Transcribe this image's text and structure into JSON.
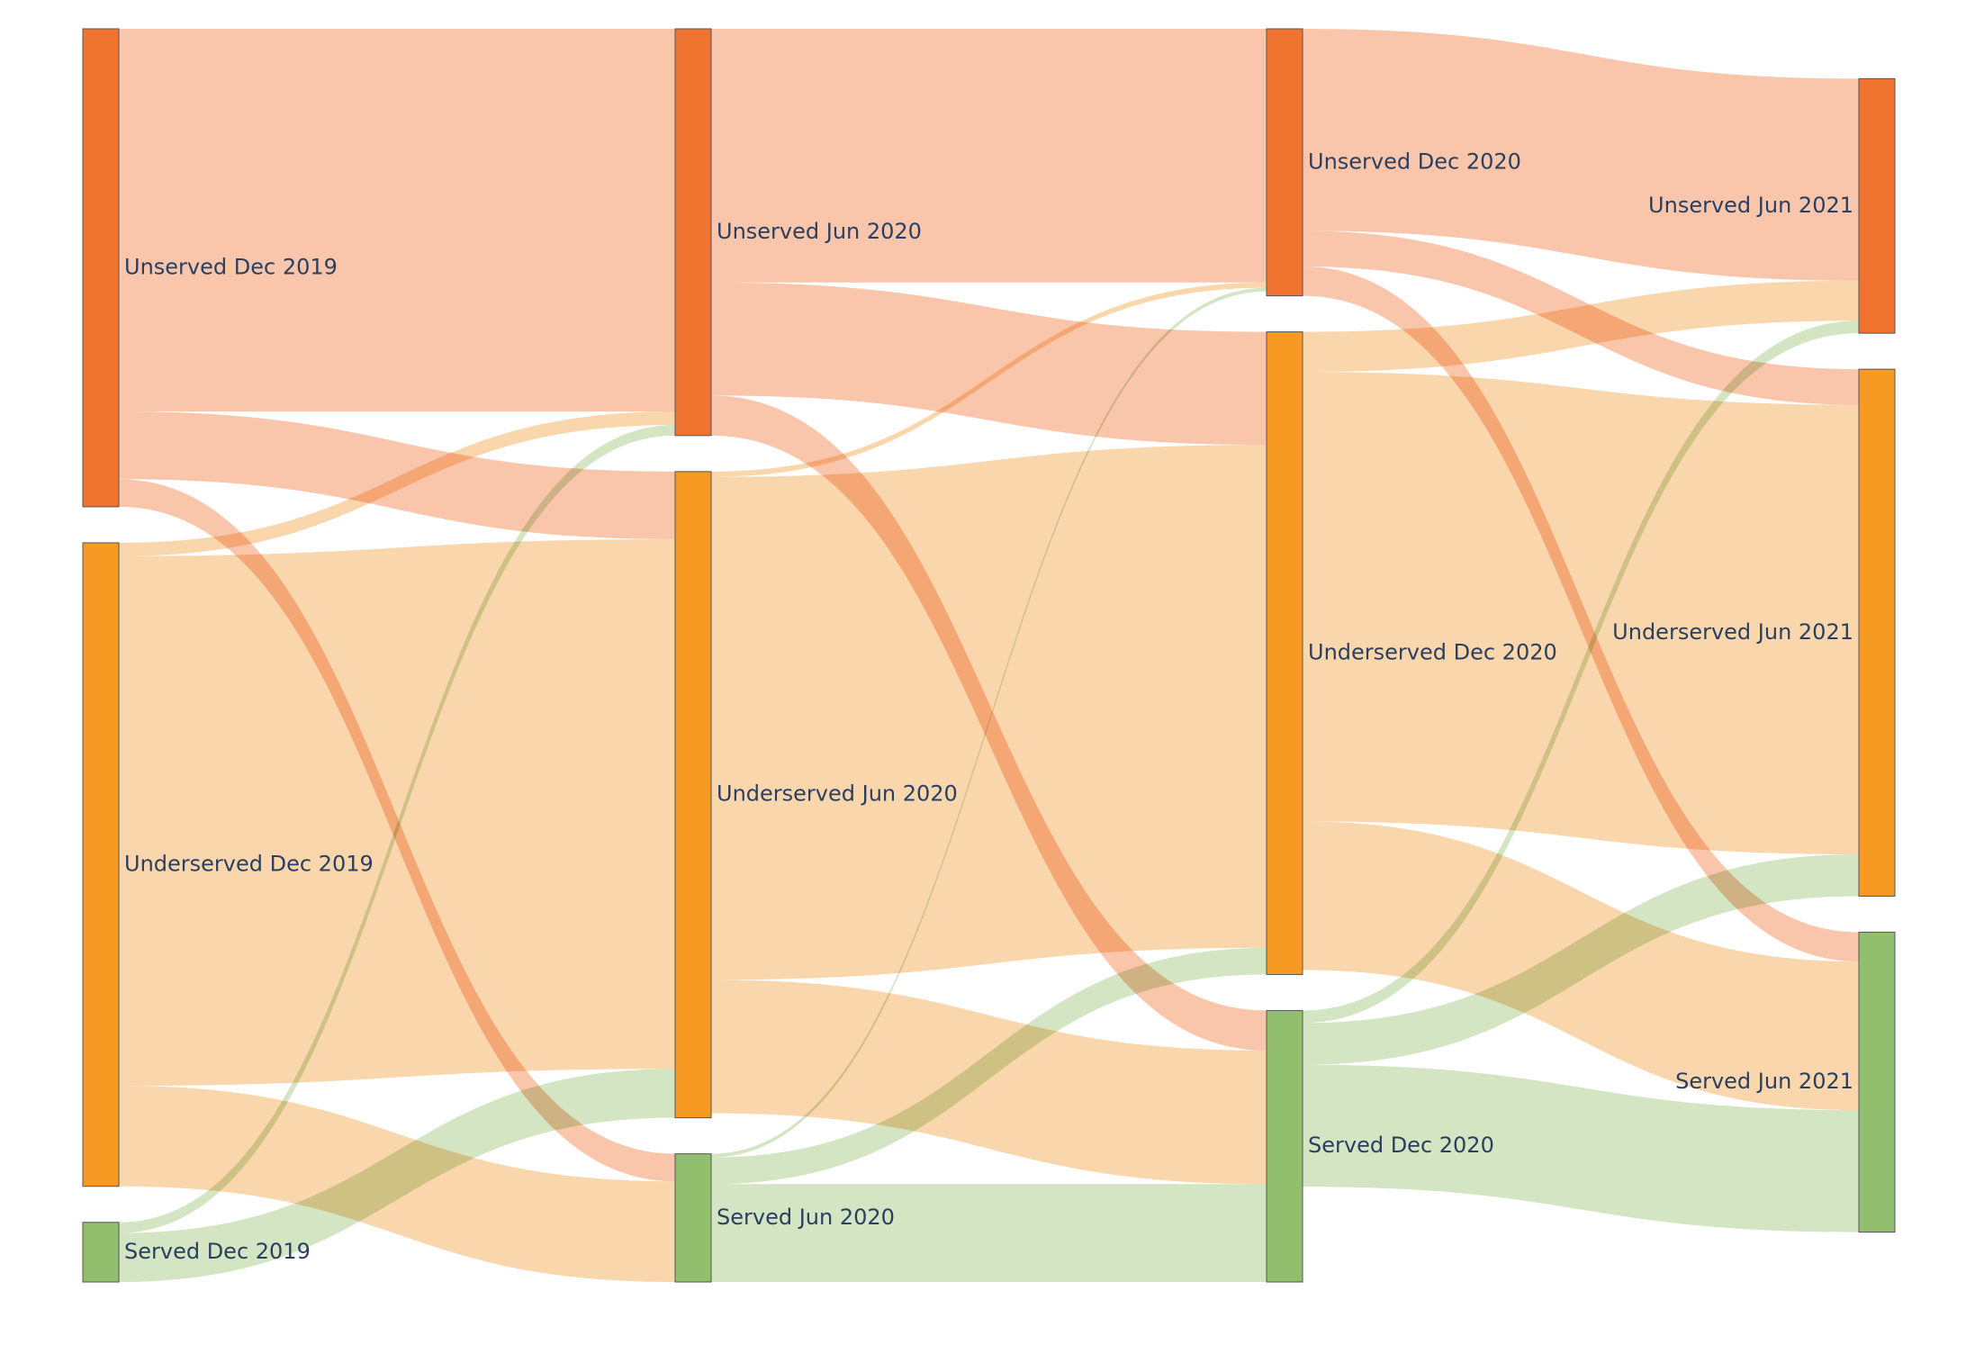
{
  "colors": {
    "unserved": "#f07330",
    "underserved": "#f79a24",
    "served": "#92bf6e",
    "unserved_link": "rgba(242,128,72,0.45)",
    "underserved_link": "rgba(245,165,70,0.45)",
    "served_link": "rgba(146,190,106,0.40)",
    "label": "#2a3f5f"
  },
  "chart_data": {
    "type": "sankey",
    "title": "",
    "columns": [
      "Dec 2019",
      "Jun 2020",
      "Dec 2020",
      "Jun 2021"
    ],
    "nodes": [
      {
        "id": "unserved_dec2019",
        "label": "Unserved Dec 2019",
        "category": "unserved",
        "column": 0
      },
      {
        "id": "underserved_dec2019",
        "label": "Underserved Dec 2019",
        "category": "underserved",
        "column": 0
      },
      {
        "id": "served_dec2019",
        "label": "Served Dec 2019",
        "category": "served",
        "column": 0
      },
      {
        "id": "unserved_jun2020",
        "label": "Unserved Jun 2020",
        "category": "unserved",
        "column": 1
      },
      {
        "id": "underserved_jun2020",
        "label": "Underserved Jun 2020",
        "category": "underserved",
        "column": 1
      },
      {
        "id": "served_jun2020",
        "label": "Served Jun 2020",
        "category": "served",
        "column": 1
      },
      {
        "id": "unserved_dec2020",
        "label": "Unserved Dec 2020",
        "category": "unserved",
        "column": 2
      },
      {
        "id": "underserved_dec2020",
        "label": "Underserved Dec 2020",
        "category": "underserved",
        "column": 2
      },
      {
        "id": "served_dec2020",
        "label": "Served Dec 2020",
        "category": "served",
        "column": 2
      },
      {
        "id": "unserved_jun2021",
        "label": "Unserved Jun 2021",
        "category": "unserved",
        "column": 3
      },
      {
        "id": "underserved_jun2021",
        "label": "Underserved Jun 2021",
        "category": "underserved",
        "column": 3
      },
      {
        "id": "served_jun2021",
        "label": "Served Jun 2021",
        "category": "served",
        "column": 3
      }
    ],
    "links": [
      {
        "source": "unserved_dec2019",
        "target": "unserved_jun2020",
        "value": 430
      },
      {
        "source": "unserved_dec2019",
        "target": "underserved_jun2020",
        "value": 76
      },
      {
        "source": "unserved_dec2019",
        "target": "served_jun2020",
        "value": 31
      },
      {
        "source": "underserved_dec2019",
        "target": "unserved_jun2020",
        "value": 15
      },
      {
        "source": "underserved_dec2019",
        "target": "underserved_jun2020",
        "value": 595
      },
      {
        "source": "underserved_dec2019",
        "target": "served_jun2020",
        "value": 113
      },
      {
        "source": "served_dec2019",
        "target": "unserved_jun2020",
        "value": 12
      },
      {
        "source": "served_dec2019",
        "target": "underserved_jun2020",
        "value": 55
      },
      {
        "source": "unserved_jun2020",
        "target": "unserved_dec2020",
        "value": 285
      },
      {
        "source": "unserved_jun2020",
        "target": "underserved_dec2020",
        "value": 127
      },
      {
        "source": "unserved_jun2020",
        "target": "served_dec2020",
        "value": 45
      },
      {
        "source": "underserved_jun2020",
        "target": "unserved_dec2020",
        "value": 6
      },
      {
        "source": "underserved_jun2020",
        "target": "underserved_dec2020",
        "value": 565
      },
      {
        "source": "underserved_jun2020",
        "target": "served_dec2020",
        "value": 150
      },
      {
        "source": "served_jun2020",
        "target": "unserved_dec2020",
        "value": 4
      },
      {
        "source": "served_jun2020",
        "target": "underserved_dec2020",
        "value": 30
      },
      {
        "source": "served_jun2020",
        "target": "served_dec2020",
        "value": 110
      },
      {
        "source": "unserved_dec2020",
        "target": "unserved_jun2021",
        "value": 227
      },
      {
        "source": "unserved_dec2020",
        "target": "underserved_jun2021",
        "value": 40
      },
      {
        "source": "unserved_dec2020",
        "target": "served_jun2021",
        "value": 33
      },
      {
        "source": "underserved_dec2020",
        "target": "unserved_jun2021",
        "value": 45
      },
      {
        "source": "underserved_dec2020",
        "target": "underserved_jun2021",
        "value": 505
      },
      {
        "source": "underserved_dec2020",
        "target": "served_jun2021",
        "value": 167
      },
      {
        "source": "served_dec2020",
        "target": "unserved_jun2021",
        "value": 14
      },
      {
        "source": "served_dec2020",
        "target": "underserved_jun2021",
        "value": 47
      },
      {
        "source": "served_dec2020",
        "target": "served_jun2021",
        "value": 137
      }
    ]
  }
}
